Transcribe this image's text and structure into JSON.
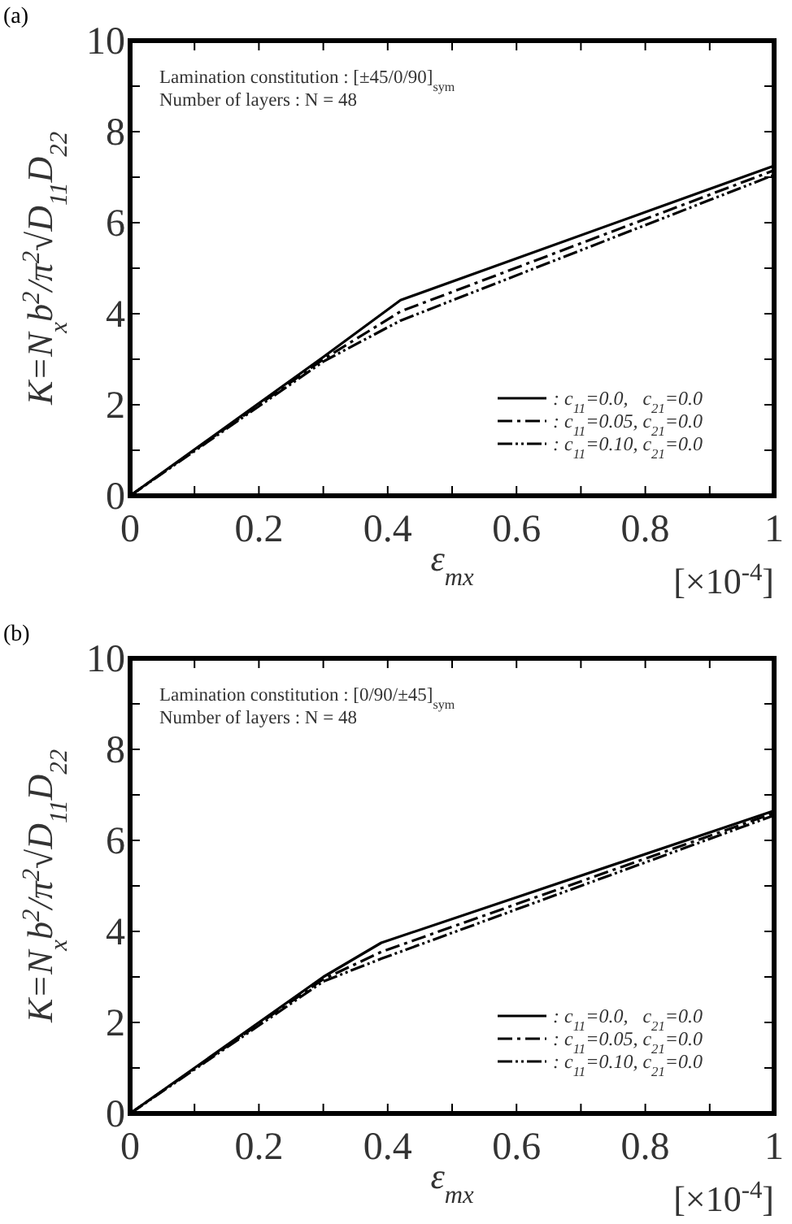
{
  "chart_data": [
    {
      "type": "line",
      "title": "(a)",
      "xlabel": "ε$_{mx}$",
      "ylabel": "K=N$_{x}$b$^{2}$/π$^{2}$√D$_{11}$D$_{22}$",
      "annotations": [
        "Lamination constitution : [±45/0/90]$_{sym}$",
        "Number of layers : N = 48",
        "[×10$^{-4}$]"
      ],
      "xlim": [
        0,
        1
      ],
      "ylim": [
        0,
        10
      ],
      "xticks": [
        0,
        {
          "value": 0.1,
          "label": null
        },
        0.2,
        {
          "value": 0.3,
          "label": null
        },
        0.4,
        {
          "value": 0.5,
          "label": null
        },
        0.6,
        {
          "value": 0.7,
          "label": null
        },
        0.8,
        {
          "value": 0.9,
          "label": null
        },
        1
      ],
      "yticks": [
        0,
        {
          "value": 1,
          "label": null
        },
        2,
        {
          "value": 3,
          "label": null
        },
        4,
        {
          "value": 5,
          "label": null
        },
        6,
        {
          "value": 7,
          "label": null
        },
        8,
        {
          "value": 9,
          "label": null
        },
        10
      ],
      "grid": false,
      "legend": "bottom right",
      "series": [
        {
          "name": ": c$_{11}$=0.0,   c$_{21}$=0.0",
          "color": "#000000",
          "line_style": "solid",
          "x": [
            0,
            0.3,
            0.42,
            1
          ],
          "values": [
            0,
            3.05,
            4.3,
            7.25
          ]
        },
        {
          "name": ": c$_{11}$=0.05, c$_{21}$=0.0",
          "color": "#000000",
          "line_style": "dashed",
          "x": [
            0,
            0.3,
            0.42,
            1
          ],
          "values": [
            0,
            3.0,
            4.05,
            7.15
          ]
        },
        {
          "name": ": c$_{11}$=0.10, c$_{21}$=0.0",
          "color": "#000000",
          "line_style": "dotted",
          "x": [
            0,
            0.3,
            0.42,
            1
          ],
          "values": [
            0,
            2.95,
            3.85,
            7.05
          ]
        }
      ]
    },
    {
      "type": "line",
      "title": "(b)",
      "xlabel": "ε$_{mx}$",
      "ylabel": "K=N$_{x}$b$^{2}$/π$^{2}$√D$_{11}$D$_{22}$",
      "annotations": [
        "Lamination constitution : [0/90/±45]$_{sym}$",
        "Number of layers : N = 48",
        "[×10$^{-4}$]"
      ],
      "xlim": [
        0,
        1
      ],
      "ylim": [
        0,
        10
      ],
      "xticks": [
        0,
        {
          "value": 0.1,
          "label": null
        },
        0.2,
        {
          "value": 0.3,
          "label": null
        },
        0.4,
        {
          "value": 0.5,
          "label": null
        },
        0.6,
        {
          "value": 0.7,
          "label": null
        },
        0.8,
        {
          "value": 0.9,
          "label": null
        },
        1
      ],
      "yticks": [
        0,
        {
          "value": 1,
          "label": null
        },
        2,
        {
          "value": 3,
          "label": null
        },
        4,
        {
          "value": 5,
          "label": null
        },
        6,
        {
          "value": 7,
          "label": null
        },
        8,
        {
          "value": 9,
          "label": null
        },
        10
      ],
      "grid": false,
      "legend": "bottom right",
      "series": [
        {
          "name": ": c$_{11}$=0.0,   c$_{21}$=0.0",
          "color": "#000000",
          "line_style": "solid",
          "x": [
            0,
            0.3,
            0.39,
            1
          ],
          "values": [
            0,
            3.0,
            3.75,
            6.65
          ]
        },
        {
          "name": ": c$_{11}$=0.05, c$_{21}$=0.0",
          "color": "#000000",
          "line_style": "dashed",
          "x": [
            0,
            0.3,
            0.39,
            1
          ],
          "values": [
            0,
            2.95,
            3.55,
            6.6
          ]
        },
        {
          "name": ": c$_{11}$=0.10, c$_{21}$=0.0",
          "color": "#000000",
          "line_style": "dotted",
          "x": [
            0,
            0.3,
            0.39,
            1
          ],
          "values": [
            0,
            2.9,
            3.4,
            6.55
          ]
        }
      ]
    }
  ]
}
